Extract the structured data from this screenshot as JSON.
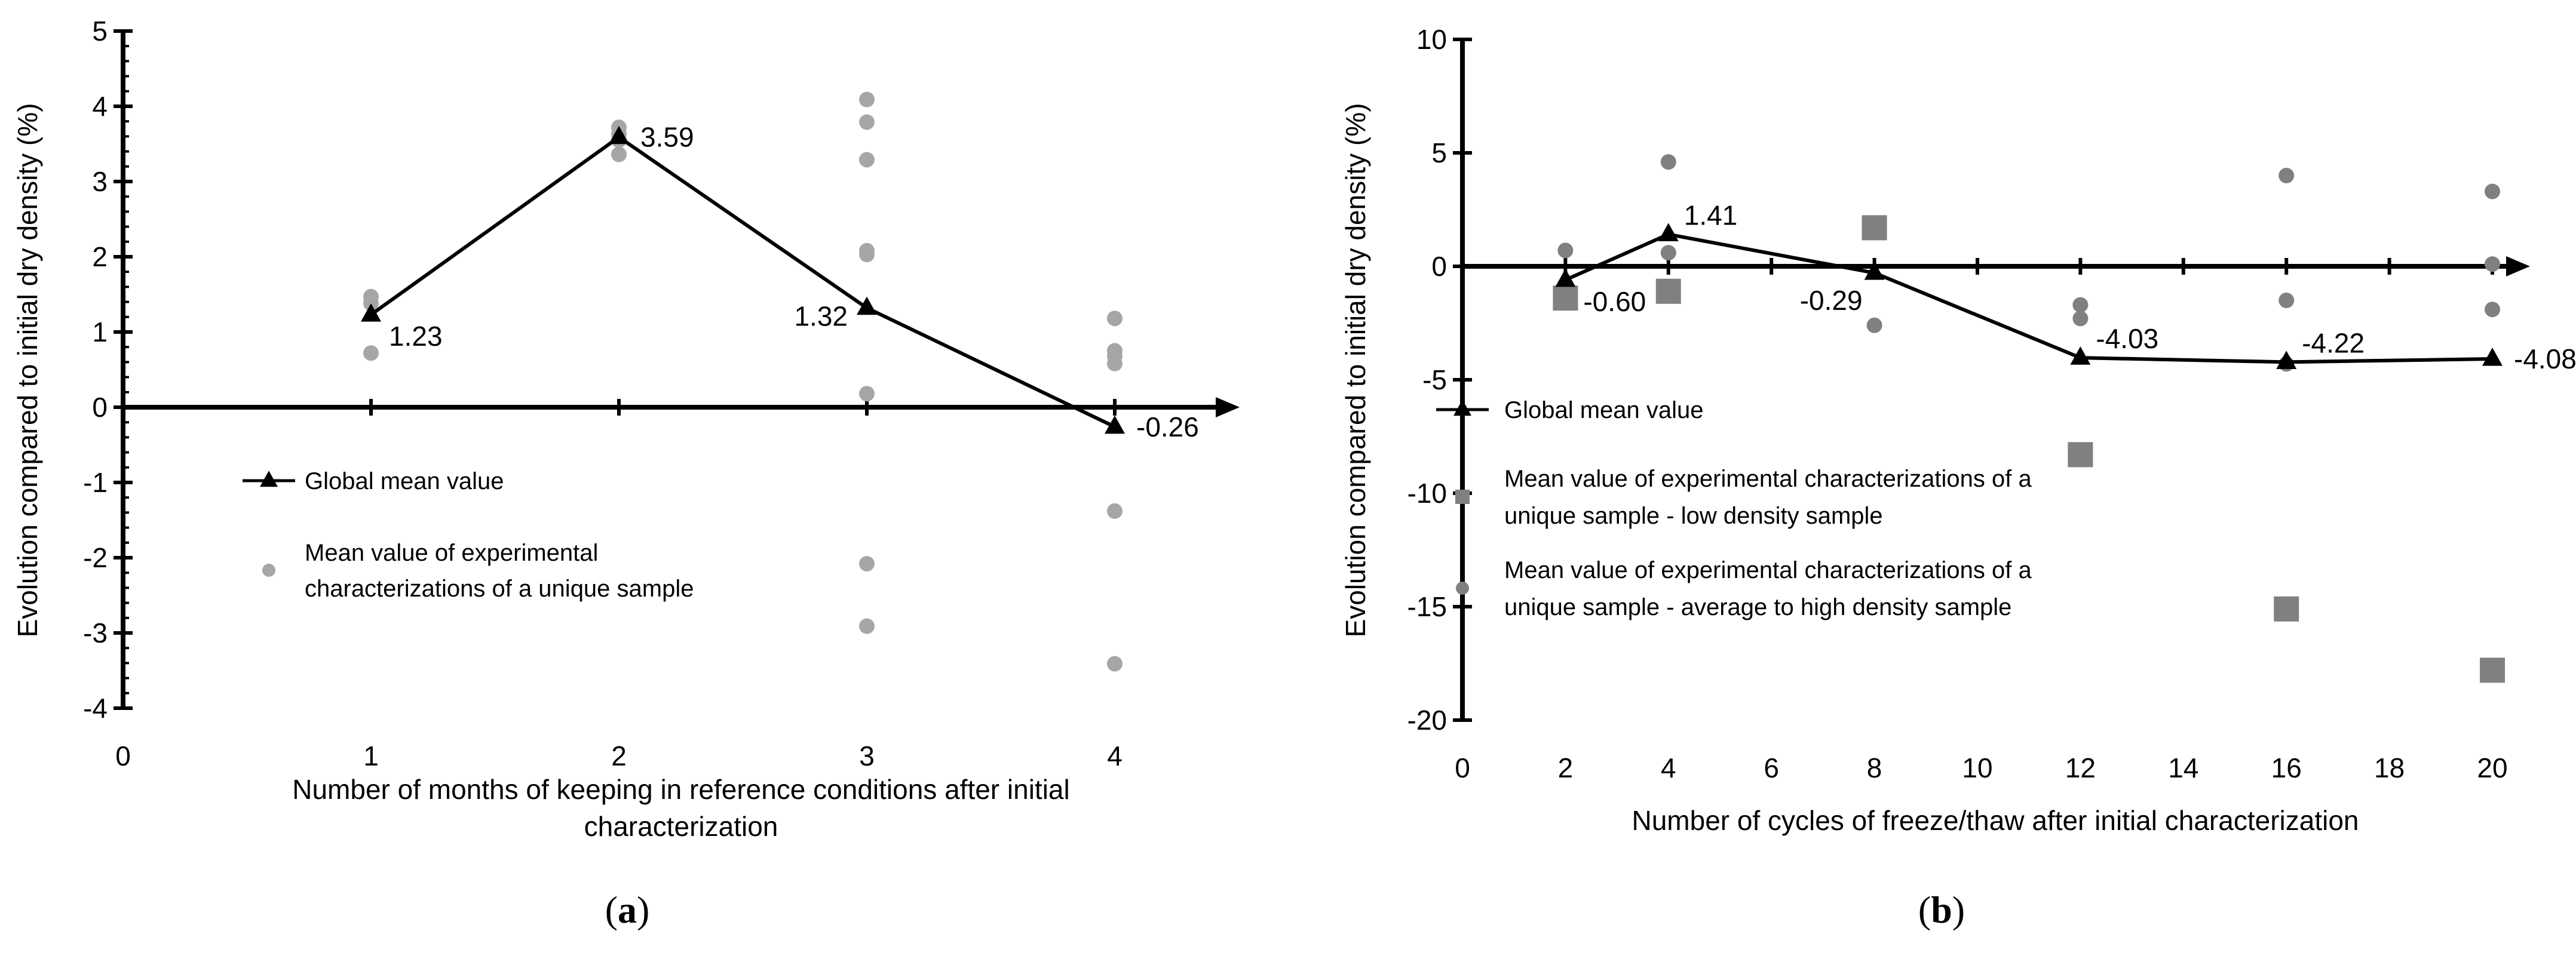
{
  "chart_data": [
    {
      "type": "line",
      "panel_label_parts": [
        "(",
        "a",
        ")"
      ],
      "title": "",
      "xlabel_lines": [
        "Number of months of keeping in reference conditions after initial",
        "characterization"
      ],
      "ylabel": "Evolution compared to initial dry density (%)",
      "xlim": [
        0,
        4.45
      ],
      "ylim": [
        -4,
        5
      ],
      "x_ticks": [
        0,
        1,
        2,
        3,
        4
      ],
      "y_ticks": [
        5,
        4,
        3,
        2,
        1,
        0,
        -1,
        -2,
        -3,
        -4
      ],
      "grid": false,
      "series": [
        {
          "name": "Global mean value",
          "kind": "line-triangle",
          "color": "#000000",
          "points": [
            {
              "x": 1,
              "y": 1.23,
              "label": "1.23",
              "label_pos": "right-below"
            },
            {
              "x": 2,
              "y": 3.59,
              "label": "3.59",
              "label_pos": "right"
            },
            {
              "x": 3,
              "y": 1.32,
              "label": "1.32",
              "label_pos": "left"
            },
            {
              "x": 4,
              "y": -0.26,
              "label": "-0.26",
              "label_pos": "right"
            }
          ]
        },
        {
          "name": "Mean value of experimental characterizations of a unique sample",
          "legend_lines": [
            "Mean value of experimental",
            "characterizations of a unique sample"
          ],
          "kind": "scatter",
          "color": "#a6a6a6",
          "points": [
            {
              "x": 1,
              "y": 1.47
            },
            {
              "x": 1,
              "y": 1.38
            },
            {
              "x": 1,
              "y": 0.72
            },
            {
              "x": 2,
              "y": 3.72
            },
            {
              "x": 2,
              "y": 3.63
            },
            {
              "x": 2,
              "y": 3.55
            },
            {
              "x": 2,
              "y": 3.36
            },
            {
              "x": 3,
              "y": 4.09
            },
            {
              "x": 3,
              "y": 3.79
            },
            {
              "x": 3,
              "y": 3.29
            },
            {
              "x": 3,
              "y": 2.08
            },
            {
              "x": 3,
              "y": 2.03
            },
            {
              "x": 3,
              "y": 0.18
            },
            {
              "x": 3,
              "y": -2.08
            },
            {
              "x": 3,
              "y": -2.91
            },
            {
              "x": 4,
              "y": 1.18
            },
            {
              "x": 4,
              "y": 0.75
            },
            {
              "x": 4,
              "y": 0.68
            },
            {
              "x": 4,
              "y": 0.58
            },
            {
              "x": 4,
              "y": -1.38
            },
            {
              "x": 4,
              "y": -3.41
            }
          ]
        }
      ]
    },
    {
      "type": "line",
      "panel_label_parts": [
        "(",
        "b",
        ")"
      ],
      "title": "",
      "xlabel_lines": [
        "Number of cycles of freeze/thaw after initial characterization"
      ],
      "ylabel": "Evolution compared to initial dry density (%)",
      "xlim": [
        0,
        21
      ],
      "ylim": [
        -20,
        10
      ],
      "x_ticks": [
        0,
        2,
        4,
        6,
        8,
        10,
        12,
        14,
        16,
        18,
        20
      ],
      "y_ticks": [
        10,
        5,
        0,
        -5,
        -10,
        -15,
        -20
      ],
      "grid": false,
      "series": [
        {
          "name": "Global mean value",
          "kind": "line-triangle",
          "color": "#000000",
          "points": [
            {
              "x": 2,
              "y": -0.6,
              "label": "-0.60",
              "label_pos": "right-below"
            },
            {
              "x": 4,
              "y": 1.41,
              "label": "1.41",
              "label_pos": "right-above"
            },
            {
              "x": 8,
              "y": -0.29,
              "label": "-0.29",
              "label_pos": "left-below"
            },
            {
              "x": 12,
              "y": -4.03,
              "label": "-4.03",
              "label_pos": "right-above"
            },
            {
              "x": 16,
              "y": -4.22,
              "label": "-4.22",
              "label_pos": "right-above"
            },
            {
              "x": 20,
              "y": -4.08,
              "label": "-4.08",
              "label_pos": "right"
            }
          ]
        },
        {
          "name": "Mean value of experimental characterizations of a unique sample - low density sample",
          "legend_lines": [
            "Mean value of experimental characterizations of a",
            "unique sample - low density sample"
          ],
          "kind": "square",
          "color": "#808080",
          "points": [
            {
              "x": 2,
              "y": -1.4
            },
            {
              "x": 4,
              "y": -1.1
            },
            {
              "x": 8,
              "y": 1.7
            },
            {
              "x": 12,
              "y": -8.3
            },
            {
              "x": 16,
              "y": -15.1
            },
            {
              "x": 20,
              "y": -17.8
            }
          ]
        },
        {
          "name": "Mean value of experimental characterizations of a unique sample - average to high density sample",
          "legend_lines": [
            "Mean value of experimental characterizations of a",
            "unique sample - average to high density sample"
          ],
          "kind": "scatter",
          "color": "#808080",
          "points": [
            {
              "x": 2,
              "y": 0.7
            },
            {
              "x": 4,
              "y": 4.6
            },
            {
              "x": 4,
              "y": 0.6
            },
            {
              "x": 8,
              "y": -2.6
            },
            {
              "x": 12,
              "y": -1.7
            },
            {
              "x": 12,
              "y": -2.3
            },
            {
              "x": 16,
              "y": 4.0
            },
            {
              "x": 16,
              "y": -1.5
            },
            {
              "x": 16,
              "y": -4.3
            },
            {
              "x": 20,
              "y": 3.3
            },
            {
              "x": 20,
              "y": 0.1
            },
            {
              "x": 20,
              "y": -1.9
            }
          ]
        }
      ]
    }
  ]
}
